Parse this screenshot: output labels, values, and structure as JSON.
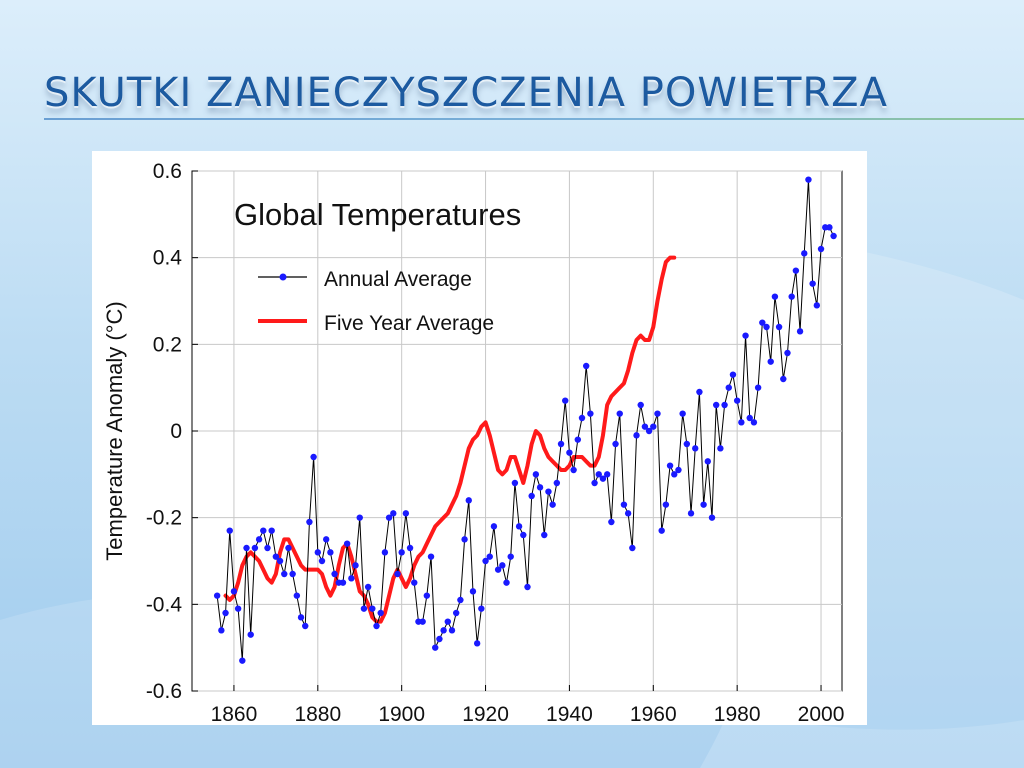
{
  "slide": {
    "title": "Skutki zanieczyszczenia powietrza"
  },
  "colors": {
    "title": "#1c5aa0",
    "annual_line": "#000000",
    "annual_marker": "#1a1aff",
    "five_year": "#ff1a1a"
  },
  "chart_data": {
    "type": "line",
    "title": "Global Temperatures",
    "xlabel": "",
    "ylabel": "Temperature Anomaly (°C)",
    "xlim": [
      1850,
      2005
    ],
    "ylim": [
      -0.6,
      0.6
    ],
    "x_ticks": [
      1860,
      1880,
      1900,
      1920,
      1940,
      1960,
      1980,
      2000
    ],
    "y_ticks": [
      -0.6,
      -0.4,
      -0.2,
      0,
      0.2,
      0.4,
      0.6
    ],
    "y_tick_labels": [
      "-0.6",
      "-0.4",
      "-0.2",
      "0",
      "0.2",
      "0.4",
      "0.6"
    ],
    "legend_placement": "upper-left",
    "grid": true,
    "series": [
      {
        "name": "Annual Average",
        "style": "line-with-markers",
        "x_start": 1856,
        "values": [
          -0.38,
          -0.46,
          -0.42,
          -0.23,
          -0.37,
          -0.41,
          -0.53,
          -0.27,
          -0.47,
          -0.27,
          -0.25,
          -0.23,
          -0.27,
          -0.23,
          -0.29,
          -0.3,
          -0.33,
          -0.27,
          -0.33,
          -0.38,
          -0.43,
          -0.45,
          -0.21,
          -0.06,
          -0.28,
          -0.3,
          -0.25,
          -0.28,
          -0.33,
          -0.35,
          -0.35,
          -0.26,
          -0.34,
          -0.31,
          -0.2,
          -0.41,
          -0.36,
          -0.41,
          -0.45,
          -0.42,
          -0.28,
          -0.2,
          -0.19,
          -0.33,
          -0.28,
          -0.19,
          -0.27,
          -0.35,
          -0.44,
          -0.44,
          -0.38,
          -0.29,
          -0.5,
          -0.48,
          -0.46,
          -0.44,
          -0.46,
          -0.42,
          -0.39,
          -0.25,
          -0.16,
          -0.37,
          -0.49,
          -0.41,
          -0.3,
          -0.29,
          -0.22,
          -0.32,
          -0.31,
          -0.35,
          -0.29,
          -0.12,
          -0.22,
          -0.24,
          -0.36,
          -0.15,
          -0.1,
          -0.13,
          -0.24,
          -0.14,
          -0.17,
          -0.12,
          -0.03,
          0.07,
          -0.05,
          -0.09,
          -0.02,
          0.03,
          0.15,
          0.04,
          -0.12,
          -0.1,
          -0.11,
          -0.1,
          -0.21,
          -0.03,
          0.04,
          -0.17,
          -0.19,
          -0.27,
          -0.01,
          0.06,
          0.01,
          0.0,
          0.01,
          0.04,
          -0.23,
          -0.17,
          -0.08,
          -0.1,
          -0.09,
          0.04,
          -0.03,
          -0.19,
          -0.04,
          0.09,
          -0.17,
          -0.07,
          -0.2,
          0.06,
          -0.04,
          0.06,
          0.1,
          0.13,
          0.07,
          0.02,
          0.22,
          0.03,
          0.02,
          0.1,
          0.25,
          0.24,
          0.16,
          0.31,
          0.24,
          0.12,
          0.18,
          0.31,
          0.37,
          0.23,
          0.41,
          0.58,
          0.34,
          0.29,
          0.42,
          0.47,
          0.47,
          0.45
        ]
      },
      {
        "name": "Five Year Average",
        "style": "smooth-line",
        "x_start": 1858,
        "values": [
          -0.38,
          -0.39,
          -0.38,
          -0.35,
          -0.31,
          -0.29,
          -0.28,
          -0.29,
          -0.3,
          -0.32,
          -0.34,
          -0.35,
          -0.33,
          -0.28,
          -0.25,
          -0.25,
          -0.27,
          -0.29,
          -0.31,
          -0.32,
          -0.32,
          -0.32,
          -0.32,
          -0.33,
          -0.36,
          -0.38,
          -0.36,
          -0.31,
          -0.27,
          -0.26,
          -0.29,
          -0.33,
          -0.37,
          -0.38,
          -0.4,
          -0.43,
          -0.44,
          -0.44,
          -0.42,
          -0.38,
          -0.34,
          -0.32,
          -0.34,
          -0.36,
          -0.34,
          -0.31,
          -0.29,
          -0.28,
          -0.26,
          -0.24,
          -0.22,
          -0.21,
          -0.2,
          -0.19,
          -0.17,
          -0.15,
          -0.12,
          -0.08,
          -0.04,
          -0.02,
          -0.01,
          0.01,
          0.02,
          -0.01,
          -0.05,
          -0.09,
          -0.1,
          -0.09,
          -0.06,
          -0.06,
          -0.09,
          -0.12,
          -0.08,
          -0.03,
          0.0,
          -0.01,
          -0.04,
          -0.06,
          -0.07,
          -0.08,
          -0.09,
          -0.09,
          -0.08,
          -0.06,
          -0.06,
          -0.06,
          -0.07,
          -0.08,
          -0.08,
          -0.06,
          -0.01,
          0.06,
          0.08,
          0.09,
          0.1,
          0.11,
          0.14,
          0.18,
          0.21,
          0.22,
          0.21,
          0.21,
          0.24,
          0.3,
          0.35,
          0.39,
          0.4,
          0.4
        ]
      }
    ]
  }
}
